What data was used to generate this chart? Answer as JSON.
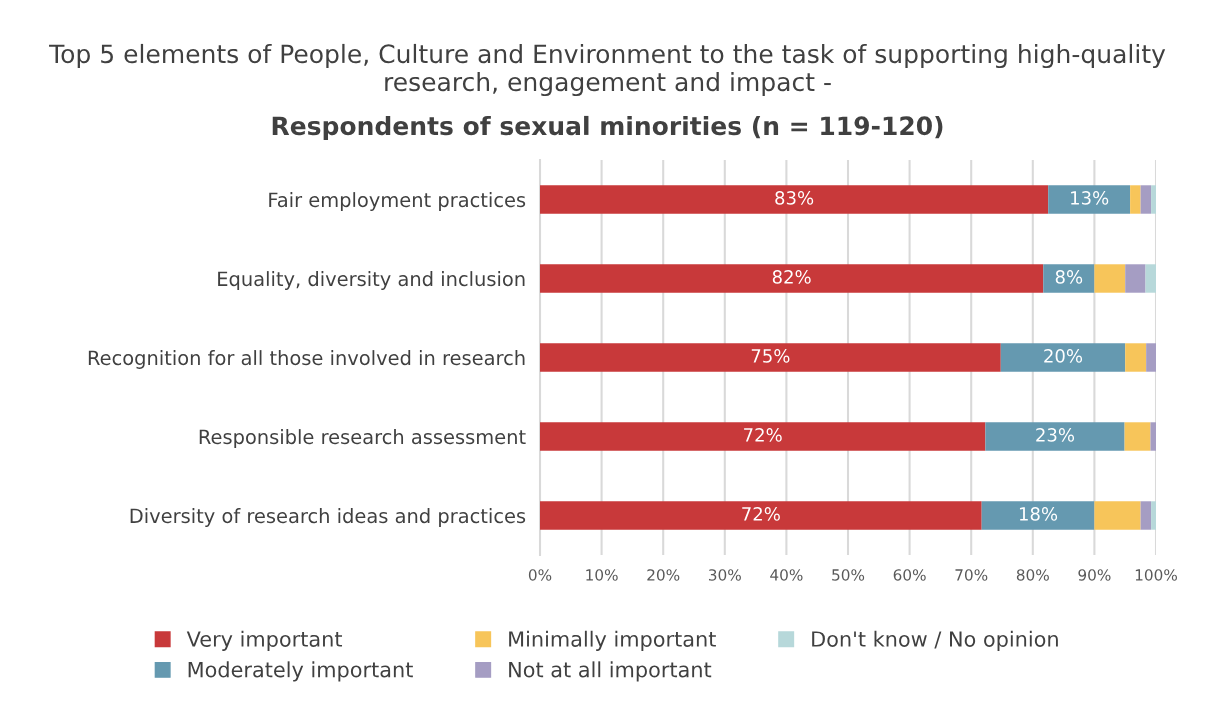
{
  "chart_data": {
    "type": "bar",
    "orientation": "horizontal",
    "stacked": true,
    "title": "Top 5 elements of People, Culture and Environment to the task of supporting high-quality research, engagement and impact -",
    "subtitle": "Respondents of sexual minorities (n = 119-120)",
    "categories": [
      "Fair employment practices",
      "Equality, diversity and inclusion",
      "Recognition for all those involved in research",
      "Responsible research assessment",
      "Diversity of research ideas and practices"
    ],
    "series": [
      {
        "name": "Very important",
        "color": "#c8393a",
        "values": [
          82.5,
          81.7,
          74.8,
          72.3,
          71.7
        ],
        "value_labels": [
          "83%",
          "82%",
          "75%",
          "72%",
          "72%"
        ]
      },
      {
        "name": "Moderately important",
        "color": "#6599b0",
        "values": [
          13.3,
          8.3,
          20.2,
          22.6,
          18.3
        ],
        "value_labels": [
          "13%",
          "8%",
          "20%",
          "23%",
          "18%"
        ]
      },
      {
        "name": "Minimally important",
        "color": "#f7c55a",
        "values": [
          1.7,
          5.0,
          3.4,
          4.2,
          7.5
        ]
      },
      {
        "name": "Not at all important",
        "color": "#a59dc3",
        "values": [
          1.7,
          3.3,
          1.6,
          0.9,
          1.7
        ]
      },
      {
        "name": "Don't know / No opinion",
        "color": "#b7d8da",
        "values": [
          0.8,
          1.7,
          0,
          0,
          0.8
        ]
      }
    ],
    "xlim": [
      0,
      100
    ],
    "xticks": [
      {
        "value": 0,
        "label": "0%"
      },
      {
        "value": 10,
        "label": "10%"
      },
      {
        "value": 20,
        "label": "20%"
      },
      {
        "value": 30,
        "label": "30%"
      },
      {
        "value": 40,
        "label": "40%"
      },
      {
        "value": 50,
        "label": "50%"
      },
      {
        "value": 60,
        "label": "60%"
      },
      {
        "value": 70,
        "label": "70%"
      },
      {
        "value": 80,
        "label": "80%"
      },
      {
        "value": 90,
        "label": "90%"
      },
      {
        "value": 100,
        "label": "100%"
      }
    ],
    "grid": "x",
    "legend": "bottom"
  }
}
